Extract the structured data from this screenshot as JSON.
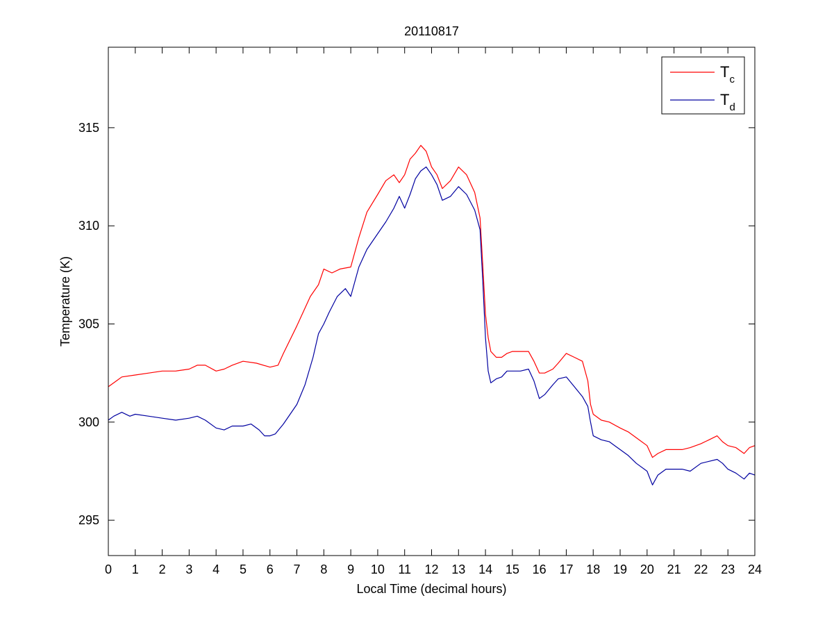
{
  "chart_data": {
    "type": "line",
    "title": "20110817",
    "xlabel": "Local Time (decimal hours)",
    "ylabel": "Temperature (K)",
    "xlim": [
      0,
      24
    ],
    "ylim": [
      293.2,
      319.1
    ],
    "xticks": [
      0,
      1,
      2,
      3,
      4,
      5,
      6,
      7,
      8,
      9,
      10,
      11,
      12,
      13,
      14,
      15,
      16,
      17,
      18,
      19,
      20,
      21,
      22,
      23,
      24
    ],
    "yticks": [
      295,
      300,
      305,
      310,
      315
    ],
    "grid": false,
    "legend_position": "top-right",
    "series": [
      {
        "name": "T",
        "name_subscript": "c",
        "color": "#ff0000",
        "x": [
          0,
          0.3,
          0.5,
          1,
          1.5,
          2,
          2.5,
          3,
          3.3,
          3.6,
          4,
          4.3,
          4.6,
          5,
          5.5,
          6,
          6.3,
          6.5,
          7,
          7.5,
          7.8,
          8,
          8.3,
          8.6,
          9,
          9.3,
          9.6,
          10,
          10.3,
          10.6,
          10.8,
          11,
          11.2,
          11.4,
          11.6,
          11.8,
          12,
          12.2,
          12.4,
          12.7,
          13,
          13.3,
          13.6,
          13.8,
          13.9,
          14,
          14.1,
          14.2,
          14.4,
          14.6,
          14.8,
          15,
          15.3,
          15.6,
          15.8,
          16,
          16.2,
          16.5,
          16.7,
          17,
          17.3,
          17.6,
          17.8,
          17.9,
          18,
          18.3,
          18.6,
          19,
          19.3,
          19.6,
          20,
          20.2,
          20.4,
          20.7,
          21,
          21.3,
          21.6,
          22,
          22.3,
          22.6,
          22.8,
          23,
          23.3,
          23.6,
          23.8,
          24
        ],
        "y": [
          301.8,
          302.1,
          302.3,
          302.4,
          302.5,
          302.6,
          302.6,
          302.7,
          302.9,
          302.9,
          302.6,
          302.7,
          302.9,
          303.1,
          303.0,
          302.8,
          302.9,
          303.5,
          304.9,
          306.4,
          307.0,
          307.8,
          307.6,
          307.8,
          307.9,
          309.4,
          310.7,
          311.6,
          312.3,
          312.6,
          312.2,
          312.6,
          313.4,
          313.7,
          314.1,
          313.8,
          313.0,
          312.6,
          311.9,
          312.3,
          313.0,
          312.6,
          311.7,
          310.4,
          308.0,
          305.5,
          304.3,
          303.6,
          303.3,
          303.3,
          303.5,
          303.6,
          303.6,
          303.6,
          303.1,
          302.5,
          302.5,
          302.7,
          303.0,
          303.5,
          303.3,
          303.1,
          302.1,
          300.9,
          300.4,
          300.1,
          300.0,
          299.7,
          299.5,
          299.2,
          298.8,
          298.2,
          298.4,
          298.6,
          298.6,
          298.6,
          298.7,
          298.9,
          299.1,
          299.3,
          299.0,
          298.8,
          298.7,
          298.4,
          298.7,
          298.8
        ]
      },
      {
        "name": "T",
        "name_subscript": "d",
        "color": "#0000a0",
        "x": [
          0,
          0.2,
          0.5,
          0.8,
          1,
          1.5,
          2,
          2.5,
          3,
          3.3,
          3.6,
          4,
          4.3,
          4.6,
          5,
          5.3,
          5.6,
          5.8,
          6,
          6.2,
          6.5,
          7,
          7.3,
          7.6,
          7.8,
          8,
          8.2,
          8.5,
          8.8,
          9,
          9.3,
          9.6,
          10,
          10.3,
          10.6,
          10.8,
          11,
          11.2,
          11.4,
          11.6,
          11.8,
          12,
          12.2,
          12.4,
          12.7,
          13,
          13.3,
          13.6,
          13.8,
          13.9,
          14,
          14.1,
          14.2,
          14.4,
          14.6,
          14.8,
          15,
          15.3,
          15.6,
          15.8,
          16,
          16.2,
          16.5,
          16.7,
          17,
          17.3,
          17.6,
          17.8,
          17.9,
          18,
          18.3,
          18.6,
          19,
          19.3,
          19.6,
          20,
          20.2,
          20.4,
          20.7,
          21,
          21.3,
          21.6,
          22,
          22.3,
          22.6,
          22.8,
          23,
          23.3,
          23.6,
          23.8,
          24
        ],
        "y": [
          300.1,
          300.3,
          300.5,
          300.3,
          300.4,
          300.3,
          300.2,
          300.1,
          300.2,
          300.3,
          300.1,
          299.7,
          299.6,
          299.8,
          299.8,
          299.9,
          299.6,
          299.3,
          299.3,
          299.4,
          299.9,
          300.9,
          301.9,
          303.3,
          304.5,
          305.0,
          305.6,
          306.4,
          306.8,
          306.4,
          307.9,
          308.8,
          309.6,
          310.2,
          310.9,
          311.5,
          310.9,
          311.6,
          312.4,
          312.8,
          313.0,
          312.6,
          312.1,
          311.3,
          311.5,
          312.0,
          311.6,
          310.8,
          309.8,
          307.2,
          304.3,
          302.6,
          302.0,
          302.2,
          302.3,
          302.6,
          302.6,
          302.6,
          302.7,
          302.1,
          301.2,
          301.4,
          301.9,
          302.2,
          302.3,
          301.8,
          301.3,
          300.8,
          300.0,
          299.3,
          299.1,
          299.0,
          298.6,
          298.3,
          297.9,
          297.5,
          296.8,
          297.3,
          297.6,
          297.6,
          297.6,
          297.5,
          297.9,
          298.0,
          298.1,
          297.9,
          297.6,
          297.4,
          297.1,
          297.4,
          297.3
        ]
      }
    ]
  }
}
